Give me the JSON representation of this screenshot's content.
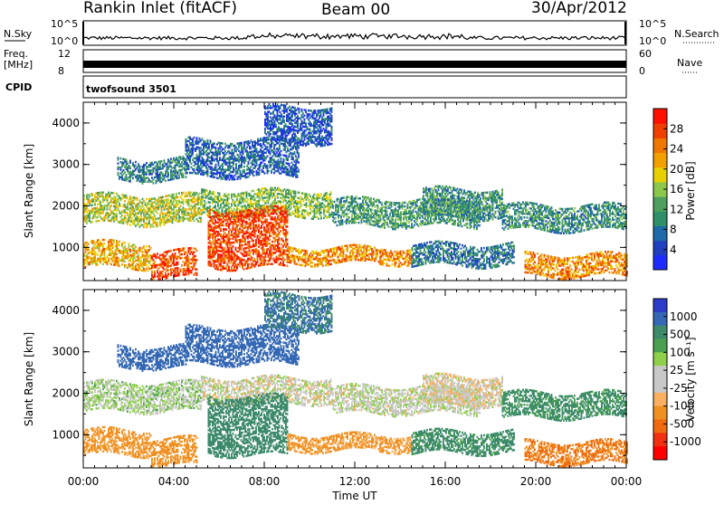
{
  "header": {
    "station": "Rankin Inlet (fitACF)",
    "beam": "Beam 00",
    "date": "30/Apr/2012"
  },
  "aux_panels": {
    "nsky_label": "N.Sky",
    "nsky_ticks": [
      "10^5",
      "10^0"
    ],
    "nsearch_label": "N.Search",
    "nsearch_ticks": [
      "10^5",
      "10^0"
    ],
    "freq_label_1": "Freq.",
    "freq_label_2": "[MHz]",
    "freq_ticks": [
      "12",
      "8"
    ],
    "nave_label": "Nave",
    "nave_ticks": [
      "60",
      "0"
    ],
    "cpid_label": "CPID",
    "cpid_value": "twofsound 3501"
  },
  "chart_data": [
    {
      "type": "heatmap",
      "name": "power",
      "ylabel": "Slant Range [km]",
      "ylim": [
        200,
        4500
      ],
      "yticks": [
        "1000",
        "2000",
        "3000",
        "4000"
      ],
      "colorbar_label": "Power [dB]",
      "colorbar_ticks": [
        "4",
        "8",
        "12",
        "16",
        "20",
        "24",
        "28"
      ],
      "colorbar_colors": [
        "#1e2cff",
        "#2040c0",
        "#1f6aa8",
        "#2f8f68",
        "#4f9f5e",
        "#8cc84a",
        "#e8d000",
        "#f2a000",
        "#f07800",
        "#f04000",
        "#ff1000"
      ],
      "scale": [
        0,
        30
      ]
    },
    {
      "type": "heatmap",
      "name": "velocity",
      "ylabel": "Slant Range [km]",
      "ylim": [
        200,
        4500
      ],
      "yticks": [
        "1000",
        "2000",
        "3000",
        "4000"
      ],
      "colorbar_label": "Velocity [m s⁻¹]",
      "colorbar_ticks": [
        "1000",
        "500",
        "100",
        "25",
        "-25",
        "-100",
        "-500",
        "-1000"
      ],
      "colorbar_colors": [
        "#2a3cc8",
        "#3468b4",
        "#3c8a6a",
        "#4aa050",
        "#8ed04a",
        "#c8c8c8",
        "#c8c8c8",
        "#f8b060",
        "#f09020",
        "#f06a10",
        "#f03010",
        "#ff0000"
      ]
    }
  ],
  "time_axis": {
    "label": "Time UT",
    "ticks": [
      "00:00",
      "04:00",
      "08:00",
      "12:00",
      "16:00",
      "20:00",
      "00:00"
    ],
    "hours": [
      0,
      4,
      8,
      12,
      16,
      20,
      24
    ]
  },
  "bands": [
    {
      "t0": 0.0,
      "t1": 5.2,
      "r0": 1550,
      "r1": 2250,
      "p": 16,
      "v": 25
    },
    {
      "t0": 5.2,
      "t1": 11.0,
      "r0": 1750,
      "r1": 2350,
      "p": 14,
      "v": 0
    },
    {
      "t0": 11.0,
      "t1": 17.5,
      "r0": 1500,
      "r1": 2150,
      "p": 11,
      "v": 10
    },
    {
      "t0": 15.0,
      "t1": 18.5,
      "r0": 1700,
      "r1": 2400,
      "p": 10,
      "v": -10
    },
    {
      "t0": 18.5,
      "t1": 24.0,
      "r0": 1400,
      "r1": 2000,
      "p": 10,
      "v": 120
    },
    {
      "t0": 0.0,
      "t1": 3.0,
      "r0": 500,
      "r1": 1100,
      "p": 20,
      "v": -120
    },
    {
      "t0": 3.0,
      "t1": 5.0,
      "r0": 250,
      "r1": 900,
      "p": 26,
      "v": -200
    },
    {
      "t0": 5.5,
      "t1": 9.0,
      "r0": 500,
      "r1": 1900,
      "p": 26,
      "v": 200
    },
    {
      "t0": 9.0,
      "t1": 14.5,
      "r0": 600,
      "r1": 1000,
      "p": 22,
      "v": -120
    },
    {
      "t0": 14.5,
      "t1": 19.0,
      "r0": 550,
      "r1": 1050,
      "p": 8,
      "v": 130
    },
    {
      "t0": 19.5,
      "t1": 24.0,
      "r0": 300,
      "r1": 800,
      "p": 22,
      "v": -300
    },
    {
      "t0": 1.5,
      "t1": 4.5,
      "r0": 2600,
      "r1": 3100,
      "p": 9,
      "v": 400
    },
    {
      "t0": 4.5,
      "t1": 9.5,
      "r0": 2700,
      "r1": 3600,
      "p": 6,
      "v": 600
    },
    {
      "t0": 8.0,
      "t1": 11.0,
      "r0": 3500,
      "r1": 4400,
      "p": 5,
      "v": 300
    }
  ]
}
